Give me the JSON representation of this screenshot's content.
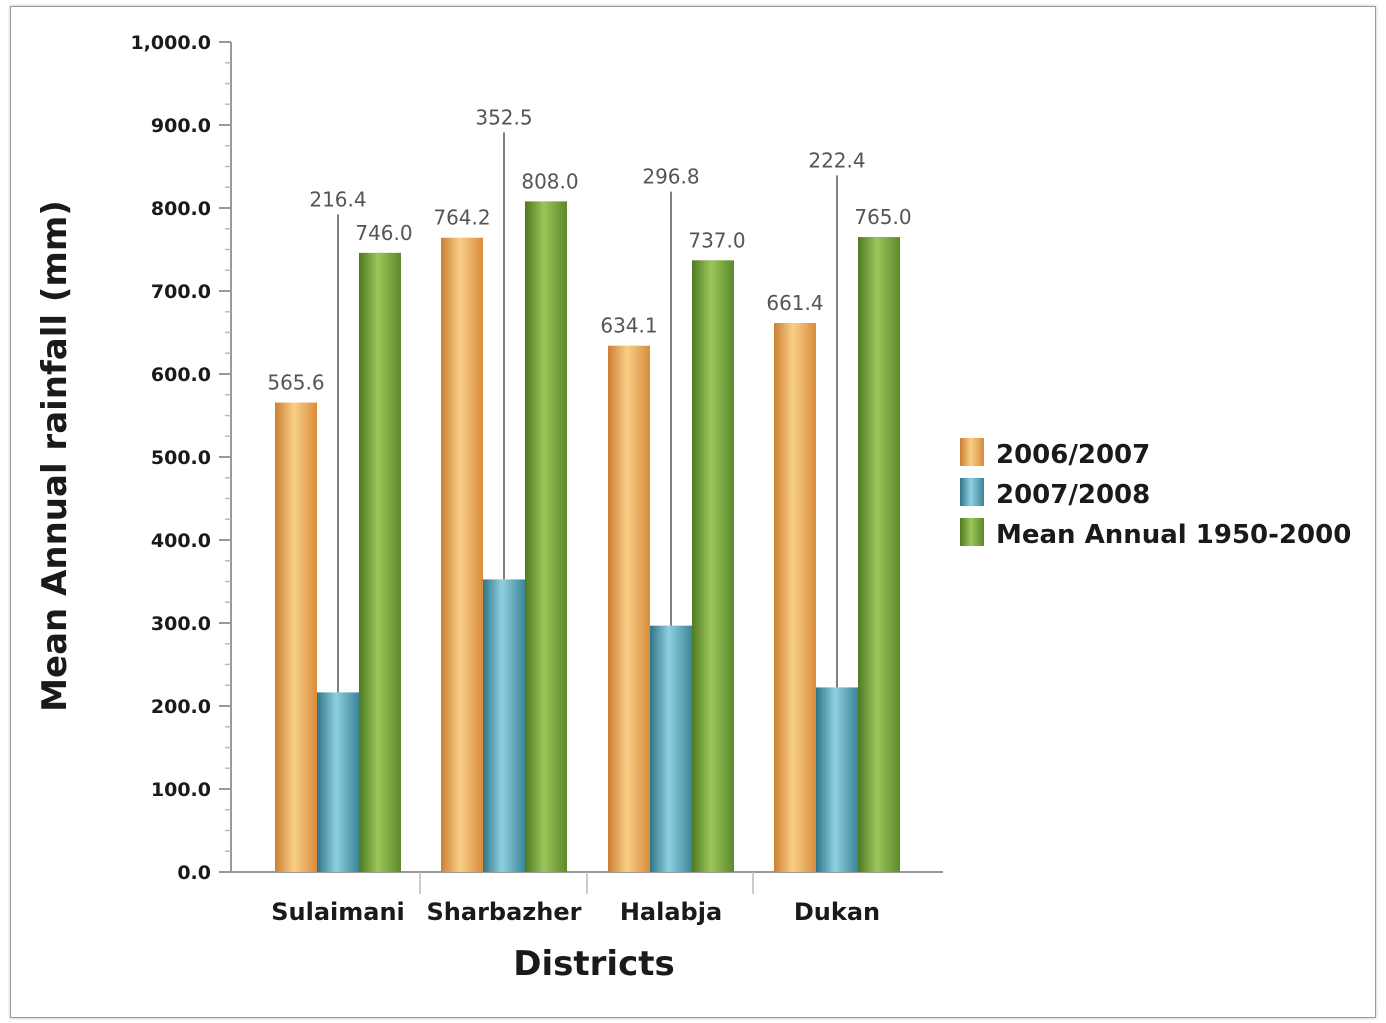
{
  "chart_data": {
    "type": "bar",
    "title": "",
    "xlabel": "Districts",
    "ylabel": "Mean Annual rainfall (mm)",
    "ylim": [
      0,
      1000
    ],
    "yticks": [
      "0.0",
      "100.0",
      "200.0",
      "300.0",
      "400.0",
      "500.0",
      "600.0",
      "700.0",
      "800.0",
      "900.0",
      "1,000.0"
    ],
    "categories": [
      "Sulaimani",
      "Sharbazher",
      "Halabja",
      "Dukan"
    ],
    "series": [
      {
        "name": "2006/2007",
        "color": "#e8a85a",
        "values": [
          565.6,
          764.2,
          634.1,
          661.4
        ],
        "labels": [
          "565.6",
          "764.2",
          "634.1",
          "661.4"
        ]
      },
      {
        "name": "2007/2008",
        "color": "#4f9aad",
        "values": [
          216.4,
          352.5,
          296.8,
          222.4
        ],
        "labels": [
          "216.4",
          "352.5",
          "296.8",
          "222.4"
        ]
      },
      {
        "name": "Mean Annual 1950-2000",
        "color": "#6f9a35",
        "values": [
          746.0,
          808.0,
          737.0,
          765.0
        ],
        "labels": [
          "746.0",
          "808.0",
          "737.0",
          "765.0"
        ]
      }
    ],
    "grid": false,
    "legend_position": "right"
  }
}
